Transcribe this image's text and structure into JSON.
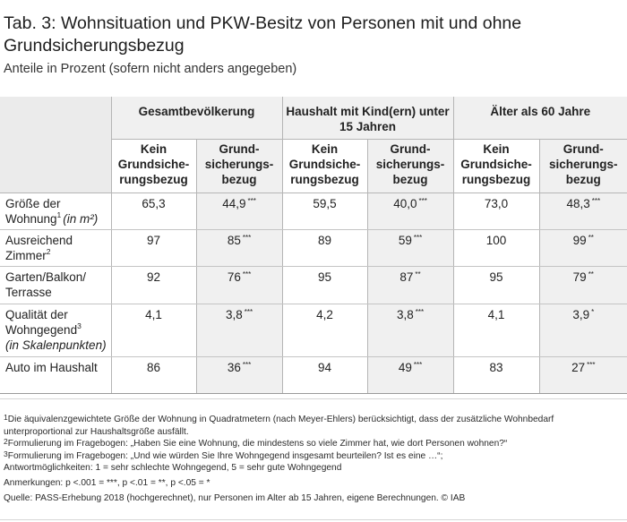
{
  "title": "Tab. 3: Wohnsituation und PKW-Besitz von Personen mit und ohne Grundsicherungsbezug",
  "subtitle": "Anteile in Prozent (sofern nicht anders angegeben)",
  "table": {
    "groups": [
      "Gesamtbevölkerung",
      "Haushalt mit Kind(ern) unter 15 Jahren",
      "Älter als 60 Jahre"
    ],
    "subheaders": [
      "Kein Grundsiche­rungsbezug",
      "Grund­sicherungs­bezug"
    ],
    "rows": [
      {
        "label": "Größe der Wohnung",
        "label_sup": "1",
        "label_suffix": "(in m²)",
        "values": [
          "65,3",
          "44,9",
          "59,5",
          "40,0",
          "73,0",
          "48,3"
        ],
        "sig": [
          "",
          "***",
          "",
          "***",
          "",
          "***"
        ]
      },
      {
        "label": "Ausreichend Zimmer",
        "label_sup": "2",
        "label_suffix": "",
        "values": [
          "97",
          "85",
          "89",
          "59",
          "100",
          "99"
        ],
        "sig": [
          "",
          "***",
          "",
          "***",
          "",
          "**"
        ]
      },
      {
        "label": "Garten/Balkon/ Terrasse",
        "label_sup": "",
        "label_suffix": "",
        "values": [
          "92",
          "76",
          "95",
          "87",
          "95",
          "79"
        ],
        "sig": [
          "",
          "***",
          "",
          "**",
          "",
          "**"
        ]
      },
      {
        "label": "Qualität der Wohngegend",
        "label_sup": "3",
        "label_suffix": "(in Skalenpunkten)",
        "values": [
          "4,1",
          "3,8",
          "4,2",
          "3,8",
          "4,1",
          "3,9"
        ],
        "sig": [
          "",
          "***",
          "",
          "***",
          "",
          "*"
        ]
      },
      {
        "label": "Auto im Haushalt",
        "label_sup": "",
        "label_suffix": "",
        "values": [
          "86",
          "36",
          "94",
          "49",
          "83",
          "27"
        ],
        "sig": [
          "",
          "***",
          "",
          "***",
          "",
          "***"
        ]
      }
    ]
  },
  "notes": {
    "n1_sup": "1",
    "n1": "Die äquivalenzgewichtete Größe der Wohnung in Quadratmetern (nach Meyer-Ehlers) berücksichtigt, dass der zusätzliche Wohnbedarf unterproportional zur Haushaltsgröße ausfällt.",
    "n2_sup": "2",
    "n2": "Formulierung im Fragebogen: „Haben Sie eine Wohnung, die mindestens so viele Zimmer hat, wie dort Personen wohnen?“",
    "n3_sup": "3",
    "n3": "Formulierung im Fragebogen: „Und wie würden Sie Ihre Wohngegend insgesamt beurteilen? Ist es eine …“;",
    "n3b": "Antwortmöglichkeiten: 1 = sehr schlechte Wohngegend, 5 = sehr gute Wohngegend",
    "remarks": "Anmerkungen: p <.001 = ***, p <.01 = **, p <.05 = *",
    "source": "Quelle: PASS-Erhebung 2018 (hochgerechnet), nur Personen im Alter ab 15 Jahren, eigene Berechnungen. © IAB"
  }
}
